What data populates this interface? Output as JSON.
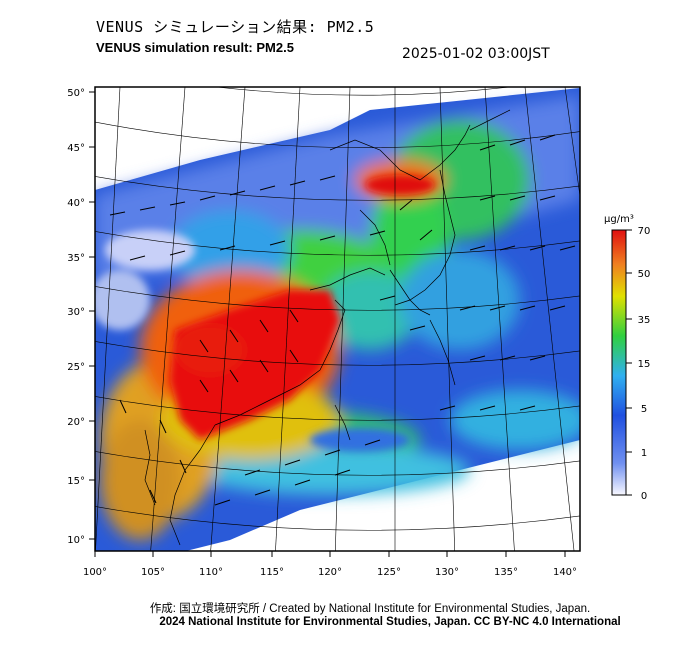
{
  "header": {
    "title_jp": "VENUS シミュレーション結果: PM2.5",
    "title_en": "VENUS simulation result: PM2.5",
    "datetime": "2025-01-02 03:00JST"
  },
  "axes": {
    "lat_labels": [
      "50°",
      "45°",
      "40°",
      "35°",
      "30°",
      "25°",
      "20°",
      "15°",
      "10°"
    ],
    "lon_labels": [
      "100°",
      "105°",
      "110°",
      "115°",
      "120°",
      "125°",
      "130°",
      "135°",
      "140°"
    ]
  },
  "colorbar": {
    "unit": "μg/m³",
    "ticks": [
      "70",
      "50",
      "35",
      "15",
      "5",
      "1",
      "0"
    ],
    "colors": [
      "#f8f8ff",
      "#3050e0",
      "#30b0f0",
      "#30d040",
      "#e0e000",
      "#f08020",
      "#e01010"
    ]
  },
  "footer": {
    "credit": "作成: 国立環境研究所 / Created by National Institute for Environmental Studies, Japan.",
    "copyright": "2024 National Institute for Environmental Studies, Japan. CC BY-NC 4.0 International"
  }
}
